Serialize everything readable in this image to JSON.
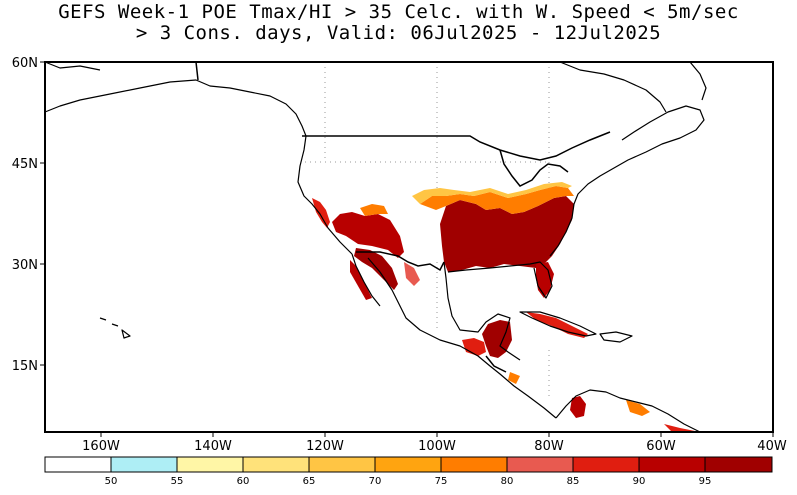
{
  "title": {
    "line1": "GEFS Week-1 POE Tmax/HI > 35 Celc. with W. Speed < 5m/sec",
    "line2": "> 3 Cons. days, Valid: 06Jul2025 - 12Jul2025"
  },
  "map": {
    "lon_range": [
      -170,
      -40
    ],
    "lat_range": [
      5,
      60
    ],
    "lat_labels": [
      "60N",
      "45N",
      "30N",
      "15N"
    ],
    "lon_labels": [
      "160W",
      "140W",
      "120W",
      "100W",
      "80W",
      "60W",
      "40W"
    ],
    "land_color": "#ffffff",
    "ocean_color": "#ffffff",
    "border_color": "#000000",
    "grid": "dotted"
  },
  "colorbar": {
    "labels": [
      "50",
      "55",
      "60",
      "65",
      "70",
      "75",
      "80",
      "85",
      "90",
      "95"
    ],
    "colors": [
      "#ffffff",
      "#aeeef5",
      "#fff6a6",
      "#ffe27a",
      "#ffc544",
      "#ffa410",
      "#ff7d00",
      "#e85a50",
      "#e01e10",
      "#b80000",
      "#a00000"
    ]
  }
}
